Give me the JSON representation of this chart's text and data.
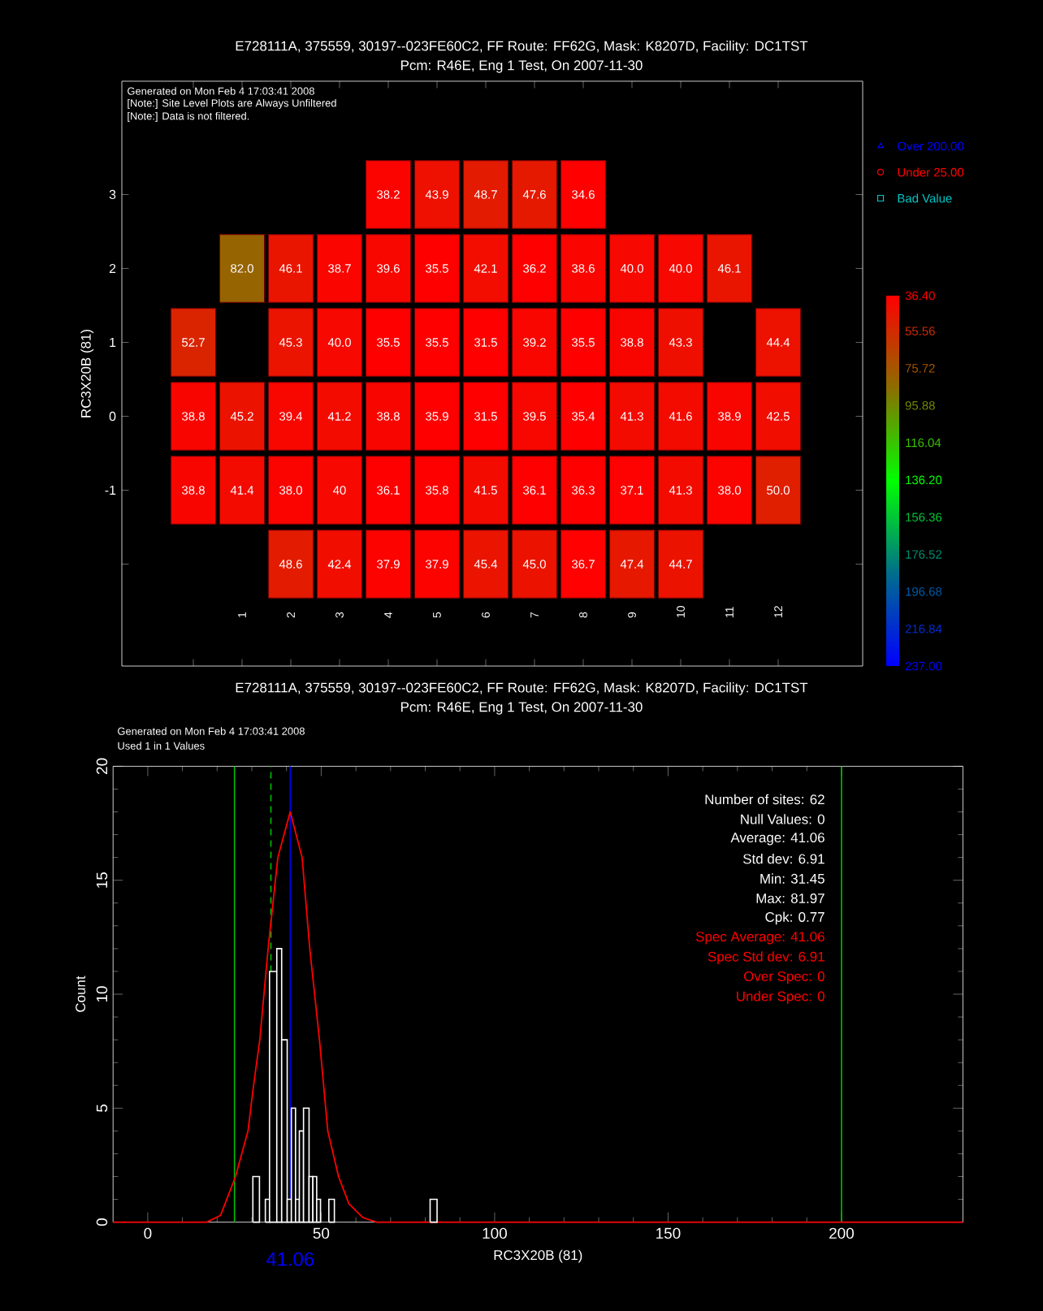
{
  "chart_data": [
    {
      "type": "heatmap",
      "title": "E728111A, 375559, 30197--023FE60C2, FF Route: FF62G, Mask: K8207D, Facility: DC1TST",
      "subtitle": "Pcm: R46E, Eng 1 Test, On 2007-11-30",
      "ylabel": "RC3X20B (81)",
      "annotations": [
        "Generated on Mon Feb 4 17:03:41 2008",
        "[Note:] Site Level Plots are Always Unfiltered",
        "[Note:] Data is not filtered.",
        "Over 200.00",
        "Under 25.00",
        "Bad Value"
      ],
      "categories": [
        null,
        "1",
        "2",
        "3",
        "4",
        "5",
        "6",
        "7",
        "8",
        "9",
        "10",
        "11",
        "12"
      ],
      "y_categories": [
        "3",
        "2",
        "1",
        "0",
        "-1",
        null
      ],
      "cells": [
        [
          null,
          null,
          null,
          null,
          38.2,
          43.9,
          48.7,
          47.6,
          34.6,
          null,
          null,
          null,
          null
        ],
        [
          null,
          82.0,
          46.1,
          38.7,
          39.6,
          35.5,
          42.1,
          36.2,
          38.6,
          40.0,
          40.0,
          46.1,
          null
        ],
        [
          52.7,
          null,
          45.3,
          40.0,
          35.5,
          35.5,
          31.5,
          39.2,
          35.5,
          38.8,
          43.3,
          null,
          44.4
        ],
        [
          38.8,
          45.2,
          39.4,
          41.2,
          38.8,
          35.9,
          31.5,
          39.5,
          35.4,
          41.3,
          41.6,
          38.9,
          42.5
        ],
        [
          38.8,
          41.4,
          38.0,
          40,
          36.1,
          35.8,
          41.5,
          36.1,
          36.3,
          37.1,
          41.3,
          38.0,
          50.0
        ],
        [
          null,
          null,
          48.6,
          42.4,
          37.9,
          37.9,
          45.4,
          45.0,
          36.7,
          47.4,
          44.7,
          null,
          null
        ]
      ],
      "cell_labels": [
        [
          null,
          null,
          null,
          null,
          "38.2",
          "43.9",
          "48.7",
          "47.6",
          "34.6",
          null,
          null,
          null,
          null
        ],
        [
          null,
          "82.0",
          "46.1",
          "38.7",
          "39.6",
          "35.5",
          "42.1",
          "36.2",
          "38.6",
          "40.0",
          "40.0",
          "46.1",
          null
        ],
        [
          "52.7",
          null,
          "45.3",
          "40.0",
          "35.5",
          "35.5",
          "31.5",
          "39.2",
          "35.5",
          "38.8",
          "43.3",
          null,
          "44.4"
        ],
        [
          "38.8",
          "45.2",
          "39.4",
          "41.2",
          "38.8",
          "35.9",
          "31.5",
          "39.5",
          "35.4",
          "41.3",
          "41.6",
          "38.9",
          "42.5"
        ],
        [
          "38.8",
          "41.4",
          "38.0",
          "40",
          "36.1",
          "35.8",
          "41.5",
          "36.1",
          "36.3",
          "37.1",
          "41.3",
          "38.0",
          "50.0"
        ],
        [
          null,
          null,
          "48.6",
          "42.4",
          "37.9",
          "37.9",
          "45.4",
          "45.0",
          "36.7",
          "47.4",
          "44.7",
          null,
          null
        ]
      ],
      "clim": [
        36.4,
        237.0
      ],
      "cticks": [
        {
          "value": 36.4,
          "label": "36.40"
        },
        {
          "value": 55.56,
          "label": "55.56"
        },
        {
          "value": 75.72,
          "label": "75.72"
        },
        {
          "value": 95.88,
          "label": "95.88"
        },
        {
          "value": 116.04,
          "label": "116.04"
        },
        {
          "value": 136.2,
          "label": "136.20"
        },
        {
          "value": 156.36,
          "label": "156.36"
        },
        {
          "value": 176.52,
          "label": "176.52"
        },
        {
          "value": 196.68,
          "label": "196.68"
        },
        {
          "value": 216.84,
          "label": "216.84"
        },
        {
          "value": 237.0,
          "label": "237.00"
        }
      ]
    },
    {
      "type": "histogram",
      "title": "E728111A, 375559, 30197--023FE60C2, FF Route: FF62G, Mask: K8207D, Facility: DC1TST",
      "subtitle": "Pcm: R46E, Eng 1 Test, On 2007-11-30",
      "xlabel": "RC3X20B (81)",
      "ylabel": "Count",
      "annotations": [
        "Generated on Mon Feb 4 17:03:41 2008",
        "Used 1 in 1 Values",
        "Number of sites: 62",
        "Null Values: 0",
        "Average: 41.06",
        "Std dev: 6.91",
        "Min: 31.45",
        "Max: 81.97",
        "Cpk: 0.77",
        "Spec Average: 41.06",
        "Spec Std dev: 6.91",
        "Over Spec: 0",
        "Under Spec: 0"
      ],
      "bins": [
        30.3,
        32.2,
        33.9,
        35.1,
        37.2,
        38.6,
        40.2,
        41.4,
        42.6,
        43.7,
        44.9,
        46.5,
        47.6,
        48.7,
        49.8,
        52.2,
        53.8,
        81.4,
        83.4
      ],
      "values": [
        2,
        0,
        1,
        11,
        12,
        8,
        1,
        5,
        1,
        4,
        5,
        2,
        2,
        1,
        0,
        1,
        0,
        1
      ],
      "color": "#ffffff",
      "series": [
        {
          "type": "line",
          "color": "#ff0000",
          "x": [
            -10,
            17,
            21,
            25.3,
            28.9,
            30.5,
            32.3,
            34.7,
            37.5,
            41.06,
            44.5,
            46.7,
            49.5,
            51.9,
            55,
            58,
            62,
            66,
            235
          ],
          "values": [
            0,
            0,
            0.3,
            2,
            4,
            6,
            8,
            12,
            16,
            18,
            16,
            12,
            8,
            4,
            2,
            0.8,
            0.2,
            0,
            0
          ]
        }
      ],
      "ref_lines": [
        {
          "axis": "x",
          "value": 25,
          "color": "#00c000"
        },
        {
          "axis": "x",
          "value": 35.5,
          "color": "#00c000",
          "line_style": "dashed"
        },
        {
          "axis": "x",
          "value": 41.06,
          "label": "41.06",
          "color": "#0000ff"
        },
        {
          "axis": "x",
          "value": 200,
          "color": "#00c000"
        }
      ],
      "xlim": [
        -10,
        235
      ],
      "ylim": [
        0,
        20
      ],
      "xticks": [
        0,
        50,
        100,
        150,
        200
      ],
      "yticks": [
        0,
        5,
        10,
        15,
        20
      ]
    }
  ]
}
